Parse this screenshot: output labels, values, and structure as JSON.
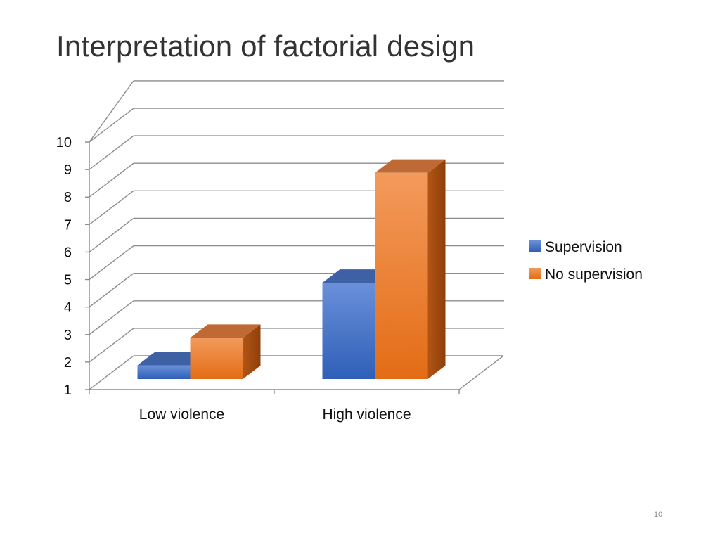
{
  "slide": {
    "title": "Interpretation of factorial design",
    "page_number": "10"
  },
  "chart_data": {
    "type": "bar",
    "style": "3d-clustered-column",
    "title": "",
    "xlabel": "",
    "ylabel": "",
    "categories": [
      "Low violence",
      "High violence"
    ],
    "series": [
      {
        "name": "Supervision",
        "values": [
          1.5,
          4.5
        ],
        "color": "#4472C4"
      },
      {
        "name": "No supervision",
        "values": [
          2.5,
          8.5
        ],
        "color": "#ED7D31"
      }
    ],
    "ylim": [
      1,
      10
    ],
    "yticks": [
      "1",
      "2",
      "3",
      "4",
      "5",
      "6",
      "7",
      "8",
      "9",
      "10"
    ],
    "grid": true,
    "legend_position": "right"
  }
}
